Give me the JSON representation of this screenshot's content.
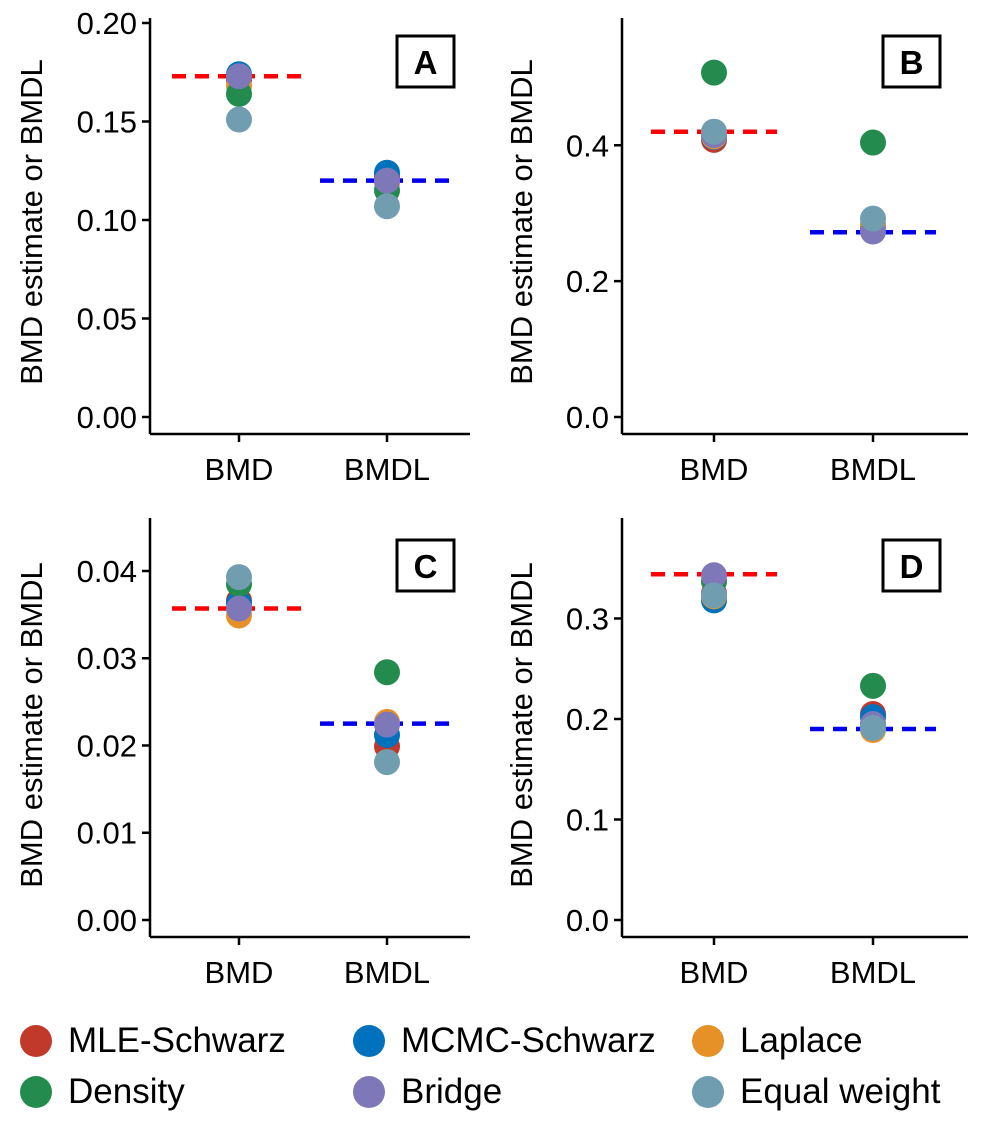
{
  "series_meta": [
    {
      "name": "MLE-Schwarz",
      "color": "#C0392B"
    },
    {
      "name": "MCMC-Schwarz",
      "color": "#0072BD"
    },
    {
      "name": "Laplace",
      "color": "#E69128"
    },
    {
      "name": "Density",
      "color": "#238B4E"
    },
    {
      "name": "Bridge",
      "color": "#7E78B8"
    },
    {
      "name": "Equal weight",
      "color": "#719DB0"
    }
  ],
  "reference_colors": {
    "BMD": "#FF0000",
    "BMDL": "#0000EE"
  },
  "chart_data": [
    {
      "type": "scatter",
      "panel": "A",
      "categories": [
        "BMD",
        "BMDL"
      ],
      "ylabel": "BMD estimate or BMDL",
      "ylim": [
        0,
        0.2
      ],
      "yticks": [
        "0.00",
        "0.05",
        "0.10",
        "0.15",
        "0.20"
      ],
      "ytick_values": [
        0,
        0.05,
        0.1,
        0.15,
        0.2
      ],
      "reference_lines": {
        "BMD": 0.173,
        "BMDL": 0.12
      },
      "series": [
        {
          "name": "MLE-Schwarz",
          "values": [
            0.171,
            0.122
          ]
        },
        {
          "name": "MCMC-Schwarz",
          "values": [
            0.174,
            0.124
          ]
        },
        {
          "name": "Laplace",
          "values": [
            0.168,
            0.119
          ]
        },
        {
          "name": "Density",
          "values": [
            0.164,
            0.115
          ]
        },
        {
          "name": "Bridge",
          "values": [
            0.173,
            0.12
          ]
        },
        {
          "name": "Equal weight",
          "values": [
            0.151,
            0.107
          ]
        }
      ]
    },
    {
      "type": "scatter",
      "panel": "B",
      "categories": [
        "BMD",
        "BMDL"
      ],
      "ylabel": "BMD estimate or BMDL",
      "ylim": [
        0,
        0.58
      ],
      "yticks": [
        "0.0",
        "0.2",
        "0.4"
      ],
      "ytick_values": [
        0,
        0.2,
        0.4
      ],
      "reference_lines": {
        "BMD": 0.42,
        "BMDL": 0.272
      },
      "series": [
        {
          "name": "MLE-Schwarz",
          "values": [
            0.408,
            0.28
          ]
        },
        {
          "name": "MCMC-Schwarz",
          "values": [
            0.412,
            0.282
          ]
        },
        {
          "name": "Laplace",
          "values": [
            0.413,
            0.283
          ]
        },
        {
          "name": "Density",
          "values": [
            0.507,
            0.404
          ]
        },
        {
          "name": "Bridge",
          "values": [
            0.415,
            0.273
          ]
        },
        {
          "name": "Equal weight",
          "values": [
            0.42,
            0.292
          ]
        }
      ]
    },
    {
      "type": "scatter",
      "panel": "C",
      "categories": [
        "BMD",
        "BMDL"
      ],
      "ylabel": "BMD estimate or BMDL",
      "ylim": [
        0,
        0.0455
      ],
      "yticks": [
        "0.00",
        "0.01",
        "0.02",
        "0.03",
        "0.04"
      ],
      "ytick_values": [
        0,
        0.01,
        0.02,
        0.03,
        0.04
      ],
      "reference_lines": {
        "BMD": 0.0357,
        "BMDL": 0.0225
      },
      "series": [
        {
          "name": "MLE-Schwarz",
          "values": [
            0.0366,
            0.0199
          ]
        },
        {
          "name": "MCMC-Schwarz",
          "values": [
            0.0363,
            0.0212
          ]
        },
        {
          "name": "Laplace",
          "values": [
            0.0349,
            0.0227
          ]
        },
        {
          "name": "Density",
          "values": [
            0.0385,
            0.0284
          ]
        },
        {
          "name": "Bridge",
          "values": [
            0.0357,
            0.0224
          ]
        },
        {
          "name": "Equal weight",
          "values": [
            0.0393,
            0.0181
          ]
        }
      ]
    },
    {
      "type": "scatter",
      "panel": "D",
      "categories": [
        "BMD",
        "BMDL"
      ],
      "ylabel": "BMD estimate or BMDL",
      "ylim": [
        0,
        0.395
      ],
      "yticks": [
        "0.0",
        "0.1",
        "0.2",
        "0.3"
      ],
      "ytick_values": [
        0,
        0.1,
        0.2,
        0.3
      ],
      "reference_lines": {
        "BMD": 0.344,
        "BMDL": 0.19
      },
      "series": [
        {
          "name": "MLE-Schwarz",
          "values": [
            0.325,
            0.205
          ]
        },
        {
          "name": "MCMC-Schwarz",
          "values": [
            0.318,
            0.202
          ]
        },
        {
          "name": "Laplace",
          "values": [
            0.322,
            0.189
          ]
        },
        {
          "name": "Density",
          "values": [
            0.337,
            0.233
          ]
        },
        {
          "name": "Bridge",
          "values": [
            0.343,
            0.195
          ]
        },
        {
          "name": "Equal weight",
          "values": [
            0.323,
            0.191
          ]
        }
      ]
    }
  ]
}
